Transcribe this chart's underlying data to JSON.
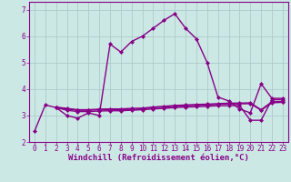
{
  "background_color": "#cce8e4",
  "grid_color": "#aacccc",
  "line_color": "#880088",
  "marker_style": "D",
  "marker_size": 2,
  "line_width": 1.0,
  "xlabel": "Windchill (Refroidissement éolien,°C)",
  "xlabel_fontsize": 6.5,
  "tick_fontsize": 5.5,
  "xlim": [
    -0.5,
    23.5
  ],
  "ylim": [
    2.0,
    7.3
  ],
  "yticks": [
    2,
    3,
    4,
    5,
    6,
    7
  ],
  "xticks": [
    0,
    1,
    2,
    3,
    4,
    5,
    6,
    7,
    8,
    9,
    10,
    11,
    12,
    13,
    14,
    15,
    16,
    17,
    18,
    19,
    20,
    21,
    22,
    23
  ],
  "series": [
    [
      2.4,
      3.4,
      3.3,
      3.0,
      2.9,
      3.1,
      3.0,
      5.7,
      5.4,
      5.8,
      6.0,
      6.3,
      6.6,
      6.85,
      6.3,
      5.9,
      5.0,
      3.7,
      3.55,
      3.25,
      3.1,
      4.2,
      3.65,
      3.65
    ],
    [
      null,
      null,
      3.3,
      3.25,
      3.2,
      3.2,
      3.22,
      3.22,
      3.22,
      3.23,
      3.25,
      3.3,
      3.32,
      3.35,
      3.37,
      3.38,
      3.4,
      3.42,
      3.44,
      3.44,
      3.45,
      3.2,
      3.48,
      3.5
    ],
    [
      null,
      null,
      3.3,
      3.2,
      3.15,
      3.15,
      3.17,
      3.18,
      3.18,
      3.2,
      3.22,
      3.25,
      3.27,
      3.3,
      3.32,
      3.33,
      3.35,
      3.37,
      3.37,
      3.38,
      2.82,
      2.82,
      3.6,
      3.6
    ],
    [
      null,
      null,
      3.32,
      3.27,
      3.22,
      3.22,
      3.24,
      3.25,
      3.25,
      3.27,
      3.28,
      3.32,
      3.35,
      3.38,
      3.4,
      3.42,
      3.43,
      3.45,
      3.47,
      3.47,
      3.48,
      3.22,
      3.52,
      3.53
    ]
  ]
}
